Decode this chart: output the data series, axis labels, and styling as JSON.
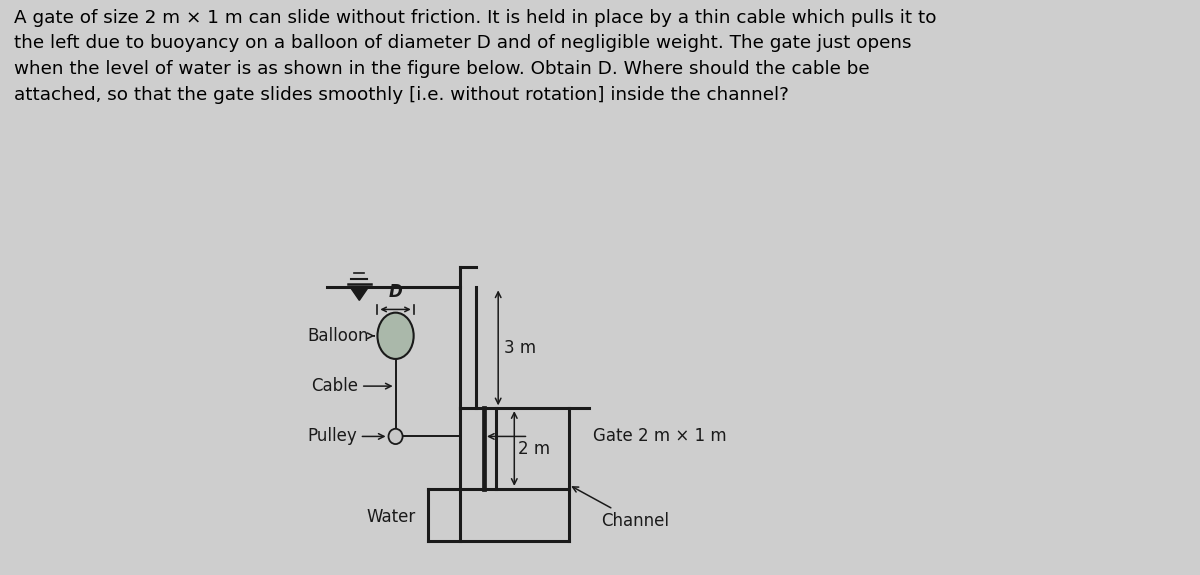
{
  "background_color": "#cecece",
  "text_color": "#000000",
  "title_lines": [
    "A gate of size 2 m × 1 m can slide without friction. It is held in place by a thin cable which pulls it to",
    "the left due to buoyancy on a balloon of diameter D and of negligible weight. The gate just opens",
    "when the level of water is as shown in the figure below. Obtain D. Where should the cable be",
    "attached, so that the gate slides smoothly [i.e. without rotation] inside the channel?"
  ],
  "title_fontsize": 13.2,
  "fig_width": 12.0,
  "fig_height": 5.75,
  "dpi": 100,
  "labels": {
    "balloon": "Balloon",
    "cable": "Cable",
    "pulley": "Pulley",
    "gate": "Gate 2 m × 1 m",
    "water": "Water",
    "channel": "Channel",
    "three_m": "3 m",
    "two_m": "2 m",
    "D": "D"
  },
  "balloon_color": "#aab8aa",
  "pulley_color": "#c8c8c8",
  "line_color": "#1a1a1a",
  "lw_struct": 2.2,
  "lw_cable": 1.4,
  "lw_dim": 1.1
}
